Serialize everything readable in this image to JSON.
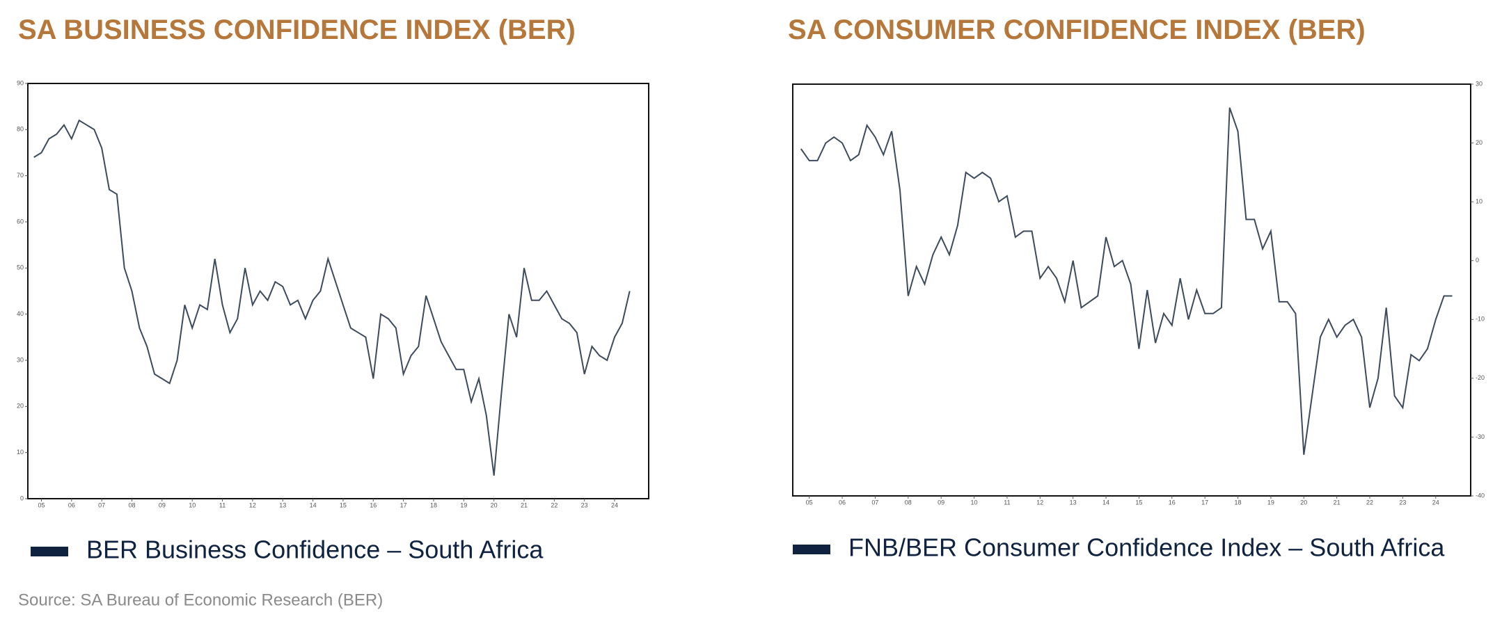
{
  "chart_data": [
    {
      "type": "line",
      "title": "SA BUSINESS CONFIDENCE INDEX (BER)",
      "y_axis_side": "left",
      "x": [
        2004.75,
        2005,
        2005.25,
        2005.5,
        2005.75,
        2006,
        2006.25,
        2006.5,
        2006.75,
        2007,
        2007.25,
        2007.5,
        2007.75,
        2008,
        2008.25,
        2008.5,
        2008.75,
        2009,
        2009.25,
        2009.5,
        2009.75,
        2010,
        2010.25,
        2010.5,
        2010.75,
        2011,
        2011.25,
        2011.5,
        2011.75,
        2012,
        2012.25,
        2012.5,
        2012.75,
        2013,
        2013.25,
        2013.5,
        2013.75,
        2014,
        2014.25,
        2014.5,
        2014.75,
        2015,
        2015.25,
        2015.5,
        2015.75,
        2016,
        2016.25,
        2016.5,
        2016.75,
        2017,
        2017.25,
        2017.5,
        2017.75,
        2018,
        2018.25,
        2018.5,
        2018.75,
        2019,
        2019.25,
        2019.5,
        2019.75,
        2020,
        2020.25,
        2020.5,
        2020.75,
        2021,
        2021.25,
        2021.5,
        2021.75,
        2022,
        2022.25,
        2022.5,
        2022.75,
        2023,
        2023.25,
        2023.5,
        2023.75,
        2024,
        2024.25,
        2024.5
      ],
      "series": [
        {
          "name": "BER Business Confidence – South Africa",
          "color": "#3d4a5c",
          "legend_color": "#0f2340",
          "values": [
            74,
            75,
            78,
            79,
            81,
            78,
            82,
            81,
            80,
            76,
            67,
            66,
            50,
            45,
            37,
            33,
            27,
            26,
            25,
            30,
            42,
            37,
            42,
            41,
            52,
            42,
            36,
            39,
            50,
            42,
            45,
            43,
            47,
            46,
            42,
            43,
            39,
            43,
            45,
            52,
            47,
            42,
            37,
            36,
            35,
            26,
            40,
            39,
            37,
            27,
            31,
            33,
            44,
            39,
            34,
            31,
            28,
            28,
            21,
            26,
            18,
            5,
            23,
            40,
            35,
            50,
            43,
            43,
            45,
            42,
            39,
            38,
            36,
            27,
            33,
            31,
            30,
            35,
            38,
            45
          ]
        }
      ],
      "xlim": [
        2004.55,
        2025.13
      ],
      "xticks": [
        {
          "value": 2005,
          "label": "05"
        },
        {
          "value": 2006,
          "label": "06"
        },
        {
          "value": 2007,
          "label": "07"
        },
        {
          "value": 2008,
          "label": "08"
        },
        {
          "value": 2009,
          "label": "09"
        },
        {
          "value": 2010,
          "label": "10"
        },
        {
          "value": 2011,
          "label": "11"
        },
        {
          "value": 2012,
          "label": "12"
        },
        {
          "value": 2013,
          "label": "13"
        },
        {
          "value": 2014,
          "label": "14"
        },
        {
          "value": 2015,
          "label": "15"
        },
        {
          "value": 2016,
          "label": "16"
        },
        {
          "value": 2017,
          "label": "17"
        },
        {
          "value": 2018,
          "label": "18"
        },
        {
          "value": 2019,
          "label": "19"
        },
        {
          "value": 2020,
          "label": "20"
        },
        {
          "value": 2021,
          "label": "21"
        },
        {
          "value": 2022,
          "label": "22"
        },
        {
          "value": 2023,
          "label": "23"
        },
        {
          "value": 2024,
          "label": "24"
        }
      ],
      "ylim": [
        0,
        90
      ],
      "yticks": [
        0,
        10,
        20,
        30,
        40,
        50,
        60,
        70,
        80,
        90
      ]
    },
    {
      "type": "line",
      "title": "SA CONSUMER CONFIDENCE INDEX (BER)",
      "y_axis_side": "right",
      "x": [
        2004.75,
        2005,
        2005.25,
        2005.5,
        2005.75,
        2006,
        2006.25,
        2006.5,
        2006.75,
        2007,
        2007.25,
        2007.5,
        2007.75,
        2008,
        2008.25,
        2008.5,
        2008.75,
        2009,
        2009.25,
        2009.5,
        2009.75,
        2010,
        2010.25,
        2010.5,
        2010.75,
        2011,
        2011.25,
        2011.5,
        2011.75,
        2012,
        2012.25,
        2012.5,
        2012.75,
        2013,
        2013.25,
        2013.5,
        2013.75,
        2014,
        2014.25,
        2014.5,
        2014.75,
        2015,
        2015.25,
        2015.5,
        2015.75,
        2016,
        2016.25,
        2016.5,
        2016.75,
        2017,
        2017.25,
        2017.5,
        2017.75,
        2018,
        2018.25,
        2018.5,
        2018.75,
        2019,
        2019.25,
        2019.5,
        2019.75,
        2020,
        2020.25,
        2020.5,
        2020.75,
        2021,
        2021.25,
        2021.5,
        2021.75,
        2022,
        2022.25,
        2022.5,
        2022.75,
        2023,
        2023.25,
        2023.5,
        2023.75,
        2024,
        2024.25,
        2024.5
      ],
      "series": [
        {
          "name": "FNB/BER Consumer Confidence Index – South Africa",
          "color": "#3d4a5c",
          "legend_color": "#0f2340",
          "values": [
            19,
            17,
            17,
            20,
            21,
            20,
            17,
            18,
            23,
            21,
            18,
            22,
            12,
            -6,
            -1,
            -4,
            1,
            4,
            1,
            6,
            15,
            14,
            15,
            14,
            10,
            11,
            4,
            5,
            5,
            -3,
            -1,
            -3,
            -7,
            0,
            -8,
            -7,
            -6,
            4,
            -1,
            0,
            -4,
            -15,
            -5,
            -14,
            -9,
            -11,
            -3,
            -10,
            -5,
            -9,
            -9,
            -8,
            26,
            22,
            7,
            7,
            2,
            5,
            -7,
            -7,
            -9,
            -33,
            -23,
            -13,
            -10,
            -13,
            -11,
            -10,
            -13,
            -25,
            -20,
            -8,
            -23,
            -25,
            -16,
            -17,
            -15,
            -10,
            -6,
            -6
          ]
        }
      ],
      "xlim": [
        2004.5,
        2025.06
      ],
      "xticks": [
        {
          "value": 2005,
          "label": "05"
        },
        {
          "value": 2006,
          "label": "06"
        },
        {
          "value": 2007,
          "label": "07"
        },
        {
          "value": 2008,
          "label": "08"
        },
        {
          "value": 2009,
          "label": "09"
        },
        {
          "value": 2010,
          "label": "10"
        },
        {
          "value": 2011,
          "label": "11"
        },
        {
          "value": 2012,
          "label": "12"
        },
        {
          "value": 2013,
          "label": "13"
        },
        {
          "value": 2014,
          "label": "14"
        },
        {
          "value": 2015,
          "label": "15"
        },
        {
          "value": 2016,
          "label": "16"
        },
        {
          "value": 2017,
          "label": "17"
        },
        {
          "value": 2018,
          "label": "18"
        },
        {
          "value": 2019,
          "label": "19"
        },
        {
          "value": 2020,
          "label": "20"
        },
        {
          "value": 2021,
          "label": "21"
        },
        {
          "value": 2022,
          "label": "22"
        },
        {
          "value": 2023,
          "label": "23"
        },
        {
          "value": 2024,
          "label": "24"
        }
      ],
      "ylim": [
        -40,
        30
      ],
      "yticks": [
        -40,
        -30,
        -20,
        -10,
        0,
        10,
        20,
        30
      ]
    }
  ],
  "source": "Source: SA Bureau of Economic Research (BER)"
}
